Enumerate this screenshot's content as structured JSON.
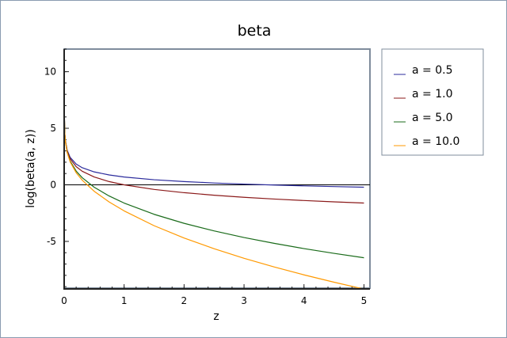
{
  "chart_data": {
    "type": "line",
    "title": "beta",
    "xlabel": "z",
    "ylabel": "log(beta(a, z))",
    "xlim": [
      0,
      5.1
    ],
    "ylim": [
      -9.2,
      12
    ],
    "xticks": [
      "0",
      "1",
      "2",
      "3",
      "4",
      "5"
    ],
    "yticks": [
      "-5",
      "0",
      "5",
      "10"
    ],
    "xtick_values": [
      0,
      1,
      2,
      3,
      4,
      5
    ],
    "ytick_values": [
      -5,
      0,
      5,
      10
    ],
    "zero_line": true,
    "grid": false,
    "legend_position": "right",
    "x": [
      0.0001,
      0.001,
      0.01,
      0.02,
      0.05,
      0.1,
      0.2,
      0.3,
      0.5,
      0.75,
      1,
      1.5,
      2,
      2.5,
      3,
      3.5,
      4,
      4.5,
      5
    ],
    "series": [
      {
        "name": "a = 0.5",
        "color": "#2b2b9c",
        "values": [
          9.21,
          6.909,
          4.619,
          3.94,
          3.061,
          2.427,
          1.836,
          1.516,
          1.145,
          0.874,
          0.693,
          0.452,
          0.288,
          0.164,
          0.065,
          -0.018,
          -0.09,
          -0.152,
          -0.208
        ]
      },
      {
        "name": "a = 1.0",
        "color": "#8b1a1a",
        "values": [
          9.21,
          6.908,
          4.605,
          3.912,
          2.996,
          2.303,
          1.609,
          1.204,
          0.693,
          0.288,
          0.0,
          -0.405,
          -0.693,
          -0.916,
          -1.099,
          -1.253,
          -1.386,
          -1.504,
          -1.609
        ]
      },
      {
        "name": "a = 5.0",
        "color": "#1a6b1a",
        "values": [
          9.21,
          6.906,
          4.584,
          3.871,
          2.893,
          2.101,
          1.218,
          0.634,
          -0.208,
          -0.985,
          -1.609,
          -2.605,
          -3.401,
          -4.072,
          -4.654,
          -5.17,
          -5.635,
          -6.057,
          -6.446
        ]
      },
      {
        "name": "a = 10.0",
        "color": "#ff9900",
        "values": [
          9.21,
          6.905,
          4.577,
          3.856,
          2.856,
          2.027,
          1.071,
          0.416,
          -0.566,
          -1.514,
          -2.303,
          -3.611,
          -4.7,
          -5.647,
          -6.492,
          -7.257,
          -7.958,
          -8.607,
          -9.211
        ]
      }
    ]
  }
}
